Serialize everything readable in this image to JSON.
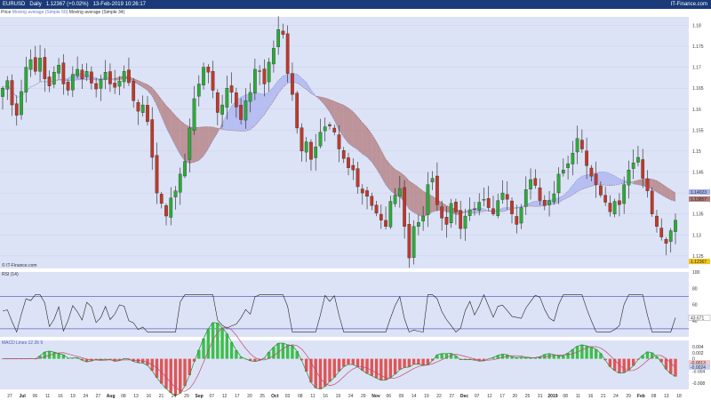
{
  "header": {
    "title": "EURUSD",
    "period": "Daily",
    "price": "1.12367 (+0.02%)",
    "datetime": "13-Feb-2019 10:26:17",
    "brand": "IT-Finance.com"
  },
  "main_legend": {
    "price": "Price",
    "ma1": "Moving average (Simple 50)",
    "ma2": "Moving average (Simple 34)"
  },
  "watermark": "© IT-Finance.com",
  "rsi_legend": "RSI (14)",
  "macd_legend": "MACD Lines 12 26 9",
  "colors": {
    "bull": "#2eaa3a",
    "bear": "#c0392b",
    "cloud_bear": "#b07a7a",
    "cloud_bull": "#a8b2f0",
    "panel_bg": "#dde3f6",
    "macd_pos": "#3cbf4a",
    "macd_neg": "#e05555",
    "price_badge": "#f0c419"
  },
  "price_axis": {
    "ticks": [
      "1.18",
      "1.175",
      "1.17",
      "1.165",
      "1.16",
      "1.155",
      "1.15",
      "1.145",
      "1.14",
      "1.135",
      "1.13",
      "1.125"
    ],
    "badges": [
      {
        "label": "1.14023",
        "value": 1.14023,
        "color": "#a8b2f0"
      },
      {
        "label": "1.13857",
        "value": 1.13857,
        "color": "#b07a7a"
      },
      {
        "label": "1.12367",
        "value": 1.12367,
        "color": "#f0c419"
      }
    ]
  },
  "rsi_axis": {
    "ticks": [
      "100",
      "80",
      "60",
      "40"
    ],
    "current": "43.671"
  },
  "macd_axis": {
    "ticks": [
      "0.004",
      "0.002",
      "0",
      "-0.004",
      "-0.008"
    ],
    "badges": [
      "-0.0013",
      "-0.0024"
    ]
  },
  "x_axis": {
    "labels": [
      {
        "t": "27",
        "m": false
      },
      {
        "t": "Jul",
        "m": true
      },
      {
        "t": "06",
        "m": false
      },
      {
        "t": "11",
        "m": false
      },
      {
        "t": "16",
        "m": false
      },
      {
        "t": "19",
        "m": false
      },
      {
        "t": "24",
        "m": false
      },
      {
        "t": "27",
        "m": false
      },
      {
        "t": "Aug",
        "m": true
      },
      {
        "t": "08",
        "m": false
      },
      {
        "t": "13",
        "m": false
      },
      {
        "t": "16",
        "m": false
      },
      {
        "t": "21",
        "m": false
      },
      {
        "t": "24",
        "m": false
      },
      {
        "t": "29",
        "m": false
      },
      {
        "t": "Sep",
        "m": true
      },
      {
        "t": "07",
        "m": false
      },
      {
        "t": "12",
        "m": false
      },
      {
        "t": "17",
        "m": false
      },
      {
        "t": "20",
        "m": false
      },
      {
        "t": "25",
        "m": false
      },
      {
        "t": "Oct",
        "m": true
      },
      {
        "t": "03",
        "m": false
      },
      {
        "t": "08",
        "m": false
      },
      {
        "t": "11",
        "m": false
      },
      {
        "t": "16",
        "m": false
      },
      {
        "t": "19",
        "m": false
      },
      {
        "t": "24",
        "m": false
      },
      {
        "t": "29",
        "m": false
      },
      {
        "t": "Nov",
        "m": true
      },
      {
        "t": "06",
        "m": false
      },
      {
        "t": "09",
        "m": false
      },
      {
        "t": "14",
        "m": false
      },
      {
        "t": "19",
        "m": false
      },
      {
        "t": "22",
        "m": false
      },
      {
        "t": "27",
        "m": false
      },
      {
        "t": "Dec",
        "m": true
      },
      {
        "t": "07",
        "m": false
      },
      {
        "t": "12",
        "m": false
      },
      {
        "t": "17",
        "m": false
      },
      {
        "t": "20",
        "m": false
      },
      {
        "t": "25",
        "m": false
      },
      {
        "t": "31",
        "m": false
      },
      {
        "t": "2019",
        "m": true
      },
      {
        "t": "08",
        "m": false
      },
      {
        "t": "11",
        "m": false
      },
      {
        "t": "16",
        "m": false
      },
      {
        "t": "21",
        "m": false
      },
      {
        "t": "24",
        "m": false
      },
      {
        "t": "29",
        "m": false
      },
      {
        "t": "Feb",
        "m": true
      },
      {
        "t": "08",
        "m": false
      },
      {
        "t": "13",
        "m": false
      },
      {
        "t": "18",
        "m": false
      }
    ]
  },
  "chart_data": [
    {
      "type": "candlestick",
      "title": "EURUSD Daily",
      "ylim": [
        1.122,
        1.182
      ],
      "grid": true,
      "closes": [
        1.165,
        1.1668,
        1.161,
        1.1585,
        1.1642,
        1.17,
        1.1718,
        1.169,
        1.1722,
        1.1672,
        1.1655,
        1.1688,
        1.1705,
        1.166,
        1.1645,
        1.1683,
        1.1695,
        1.1672,
        1.169,
        1.1662,
        1.1648,
        1.1671,
        1.1688,
        1.166,
        1.1652,
        1.1667,
        1.169,
        1.1663,
        1.162,
        1.1595,
        1.161,
        1.157,
        1.1485,
        1.14,
        1.1375,
        1.1345,
        1.1388,
        1.1405,
        1.1445,
        1.1475,
        1.1555,
        1.1625,
        1.166,
        1.17,
        1.1688,
        1.1645,
        1.1592,
        1.161,
        1.165,
        1.164,
        1.1605,
        1.1575,
        1.162,
        1.164,
        1.1695,
        1.169,
        1.166,
        1.1712,
        1.1745,
        1.179,
        1.1778,
        1.1685,
        1.1635,
        1.1555,
        1.15,
        1.1522,
        1.148,
        1.151,
        1.1545,
        1.1558,
        1.156,
        1.1545,
        1.1505,
        1.1482,
        1.146,
        1.1455,
        1.1415,
        1.14,
        1.1392,
        1.137,
        1.1352,
        1.1335,
        1.132,
        1.138,
        1.1395,
        1.141,
        1.132,
        1.1245,
        1.132,
        1.133,
        1.1345,
        1.142,
        1.1435,
        1.1372,
        1.134,
        1.1325,
        1.1375,
        1.1355,
        1.1315,
        1.1345,
        1.136,
        1.1362,
        1.1378,
        1.1385,
        1.1365,
        1.135,
        1.1382,
        1.14,
        1.1385,
        1.135,
        1.1325,
        1.1365,
        1.1408,
        1.1432,
        1.1418,
        1.1382,
        1.137,
        1.1382,
        1.1398,
        1.1445,
        1.1455,
        1.147,
        1.1495,
        1.153,
        1.1505,
        1.1465,
        1.144,
        1.142,
        1.1395,
        1.1378,
        1.1355,
        1.138,
        1.1372,
        1.142,
        1.1455,
        1.1472,
        1.1485,
        1.1435,
        1.1405,
        1.135,
        1.132,
        1.1295,
        1.128,
        1.131,
        1.1335
      ],
      "last": 1.12367
    },
    {
      "type": "line",
      "title": "RSI (14)",
      "ylim": [
        20,
        100
      ],
      "levels": [
        70,
        30
      ],
      "current": 43.671
    },
    {
      "type": "bar",
      "title": "MACD Lines 12 26 9",
      "ylim": [
        -0.01,
        0.006
      ],
      "series": [
        {
          "name": "MACD"
        },
        {
          "name": "Signal"
        }
      ]
    }
  ]
}
